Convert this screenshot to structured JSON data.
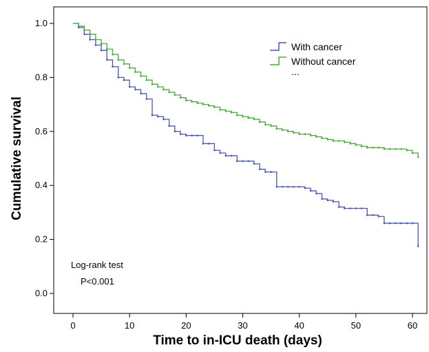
{
  "chart_data": {
    "type": "line",
    "step": true,
    "xlabel": "Time to in-ICU death (days)",
    "ylabel": "Cumulative survival",
    "xlim": [
      0,
      61
    ],
    "ylim": [
      0,
      1
    ],
    "xticks": [
      "0",
      "10",
      "20",
      "30",
      "40",
      "50",
      "60"
    ],
    "yticks": [
      "0.0",
      "0.2",
      "0.4",
      "0.6",
      "0.8",
      "1.0"
    ],
    "grid": false,
    "legend_position": "top-right",
    "legend_extra": "...",
    "annotation": [
      "Log-rank test",
      "P<0.001"
    ],
    "series": [
      {
        "name": "With cancer",
        "color": "#4a56b0",
        "x": [
          0,
          1,
          2,
          3,
          4,
          5,
          6,
          7,
          8,
          9,
          10,
          11,
          12,
          13,
          14,
          15,
          16,
          17,
          18,
          19,
          20,
          21,
          22,
          23,
          24,
          25,
          26,
          27,
          28,
          29,
          30,
          31,
          32,
          33,
          34,
          35,
          36,
          37,
          38,
          39,
          40,
          41,
          42,
          43,
          44,
          45,
          46,
          47,
          48,
          49,
          50,
          51,
          52,
          53,
          54,
          55,
          56,
          57,
          58,
          59,
          60,
          61
        ],
        "y": [
          1.0,
          0.985,
          0.96,
          0.94,
          0.92,
          0.9,
          0.865,
          0.84,
          0.8,
          0.79,
          0.765,
          0.755,
          0.74,
          0.72,
          0.66,
          0.655,
          0.645,
          0.62,
          0.6,
          0.59,
          0.585,
          0.585,
          0.585,
          0.555,
          0.555,
          0.53,
          0.52,
          0.51,
          0.51,
          0.49,
          0.49,
          0.49,
          0.48,
          0.46,
          0.45,
          0.45,
          0.395,
          0.395,
          0.395,
          0.395,
          0.395,
          0.39,
          0.38,
          0.37,
          0.35,
          0.345,
          0.34,
          0.32,
          0.315,
          0.315,
          0.315,
          0.315,
          0.29,
          0.29,
          0.285,
          0.26,
          0.26,
          0.26,
          0.26,
          0.26,
          0.26,
          0.175
        ]
      },
      {
        "name": "Without cancer",
        "color": "#4aaa3a",
        "x": [
          0,
          1,
          2,
          3,
          4,
          5,
          6,
          7,
          8,
          9,
          10,
          11,
          12,
          13,
          14,
          15,
          16,
          17,
          18,
          19,
          20,
          21,
          22,
          23,
          24,
          25,
          26,
          27,
          28,
          29,
          30,
          31,
          32,
          33,
          34,
          35,
          36,
          37,
          38,
          39,
          40,
          41,
          42,
          43,
          44,
          45,
          46,
          47,
          48,
          49,
          50,
          51,
          52,
          53,
          54,
          55,
          56,
          57,
          58,
          59,
          60,
          61
        ],
        "y": [
          1.0,
          0.99,
          0.975,
          0.96,
          0.94,
          0.925,
          0.905,
          0.885,
          0.865,
          0.85,
          0.835,
          0.82,
          0.805,
          0.79,
          0.775,
          0.765,
          0.755,
          0.745,
          0.735,
          0.725,
          0.715,
          0.71,
          0.705,
          0.7,
          0.695,
          0.69,
          0.68,
          0.675,
          0.67,
          0.66,
          0.655,
          0.65,
          0.645,
          0.635,
          0.625,
          0.62,
          0.61,
          0.605,
          0.6,
          0.595,
          0.59,
          0.59,
          0.585,
          0.58,
          0.575,
          0.57,
          0.565,
          0.565,
          0.56,
          0.555,
          0.55,
          0.545,
          0.54,
          0.54,
          0.54,
          0.535,
          0.535,
          0.535,
          0.535,
          0.53,
          0.52,
          0.505
        ]
      }
    ]
  }
}
